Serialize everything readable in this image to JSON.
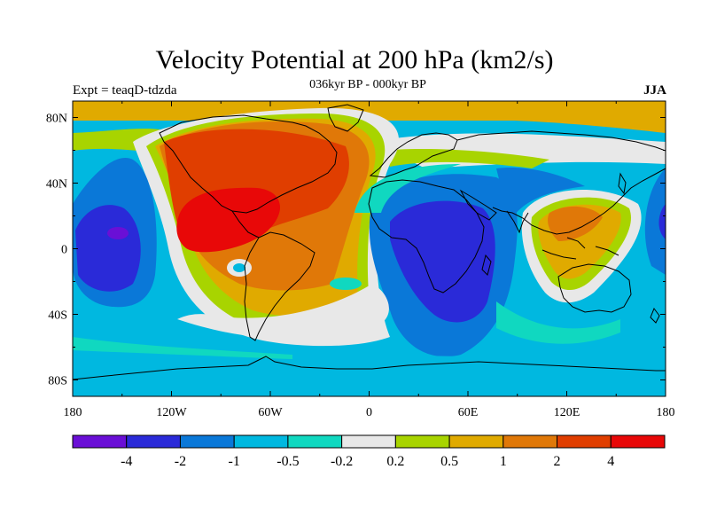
{
  "title": "Velocity Potential at 200 hPa (km2/s)",
  "subtitle": "036kyr BP - 000kyr BP",
  "left_string": "Expt = teaqD-tdzda",
  "right_string": "JJA",
  "axes": {
    "x_ticks": [
      "180",
      "120W",
      "60W",
      "0",
      "60E",
      "120E",
      "180"
    ],
    "y_ticks": [
      "80N",
      "40N",
      "0",
      "40S",
      "80S"
    ]
  },
  "colorbar": {
    "colors": [
      "#6a0fd6",
      "#2a2ad8",
      "#0a78d8",
      "#00b8e0",
      "#10d8c0",
      "#e8e8e8",
      "#a8d400",
      "#e0aa00",
      "#e07808",
      "#e03e00",
      "#e80808"
    ],
    "labels": [
      "-4",
      "-2",
      "-1",
      "-0.5",
      "-0.2",
      "0.2",
      "0.5",
      "1",
      "2",
      "4"
    ]
  }
}
